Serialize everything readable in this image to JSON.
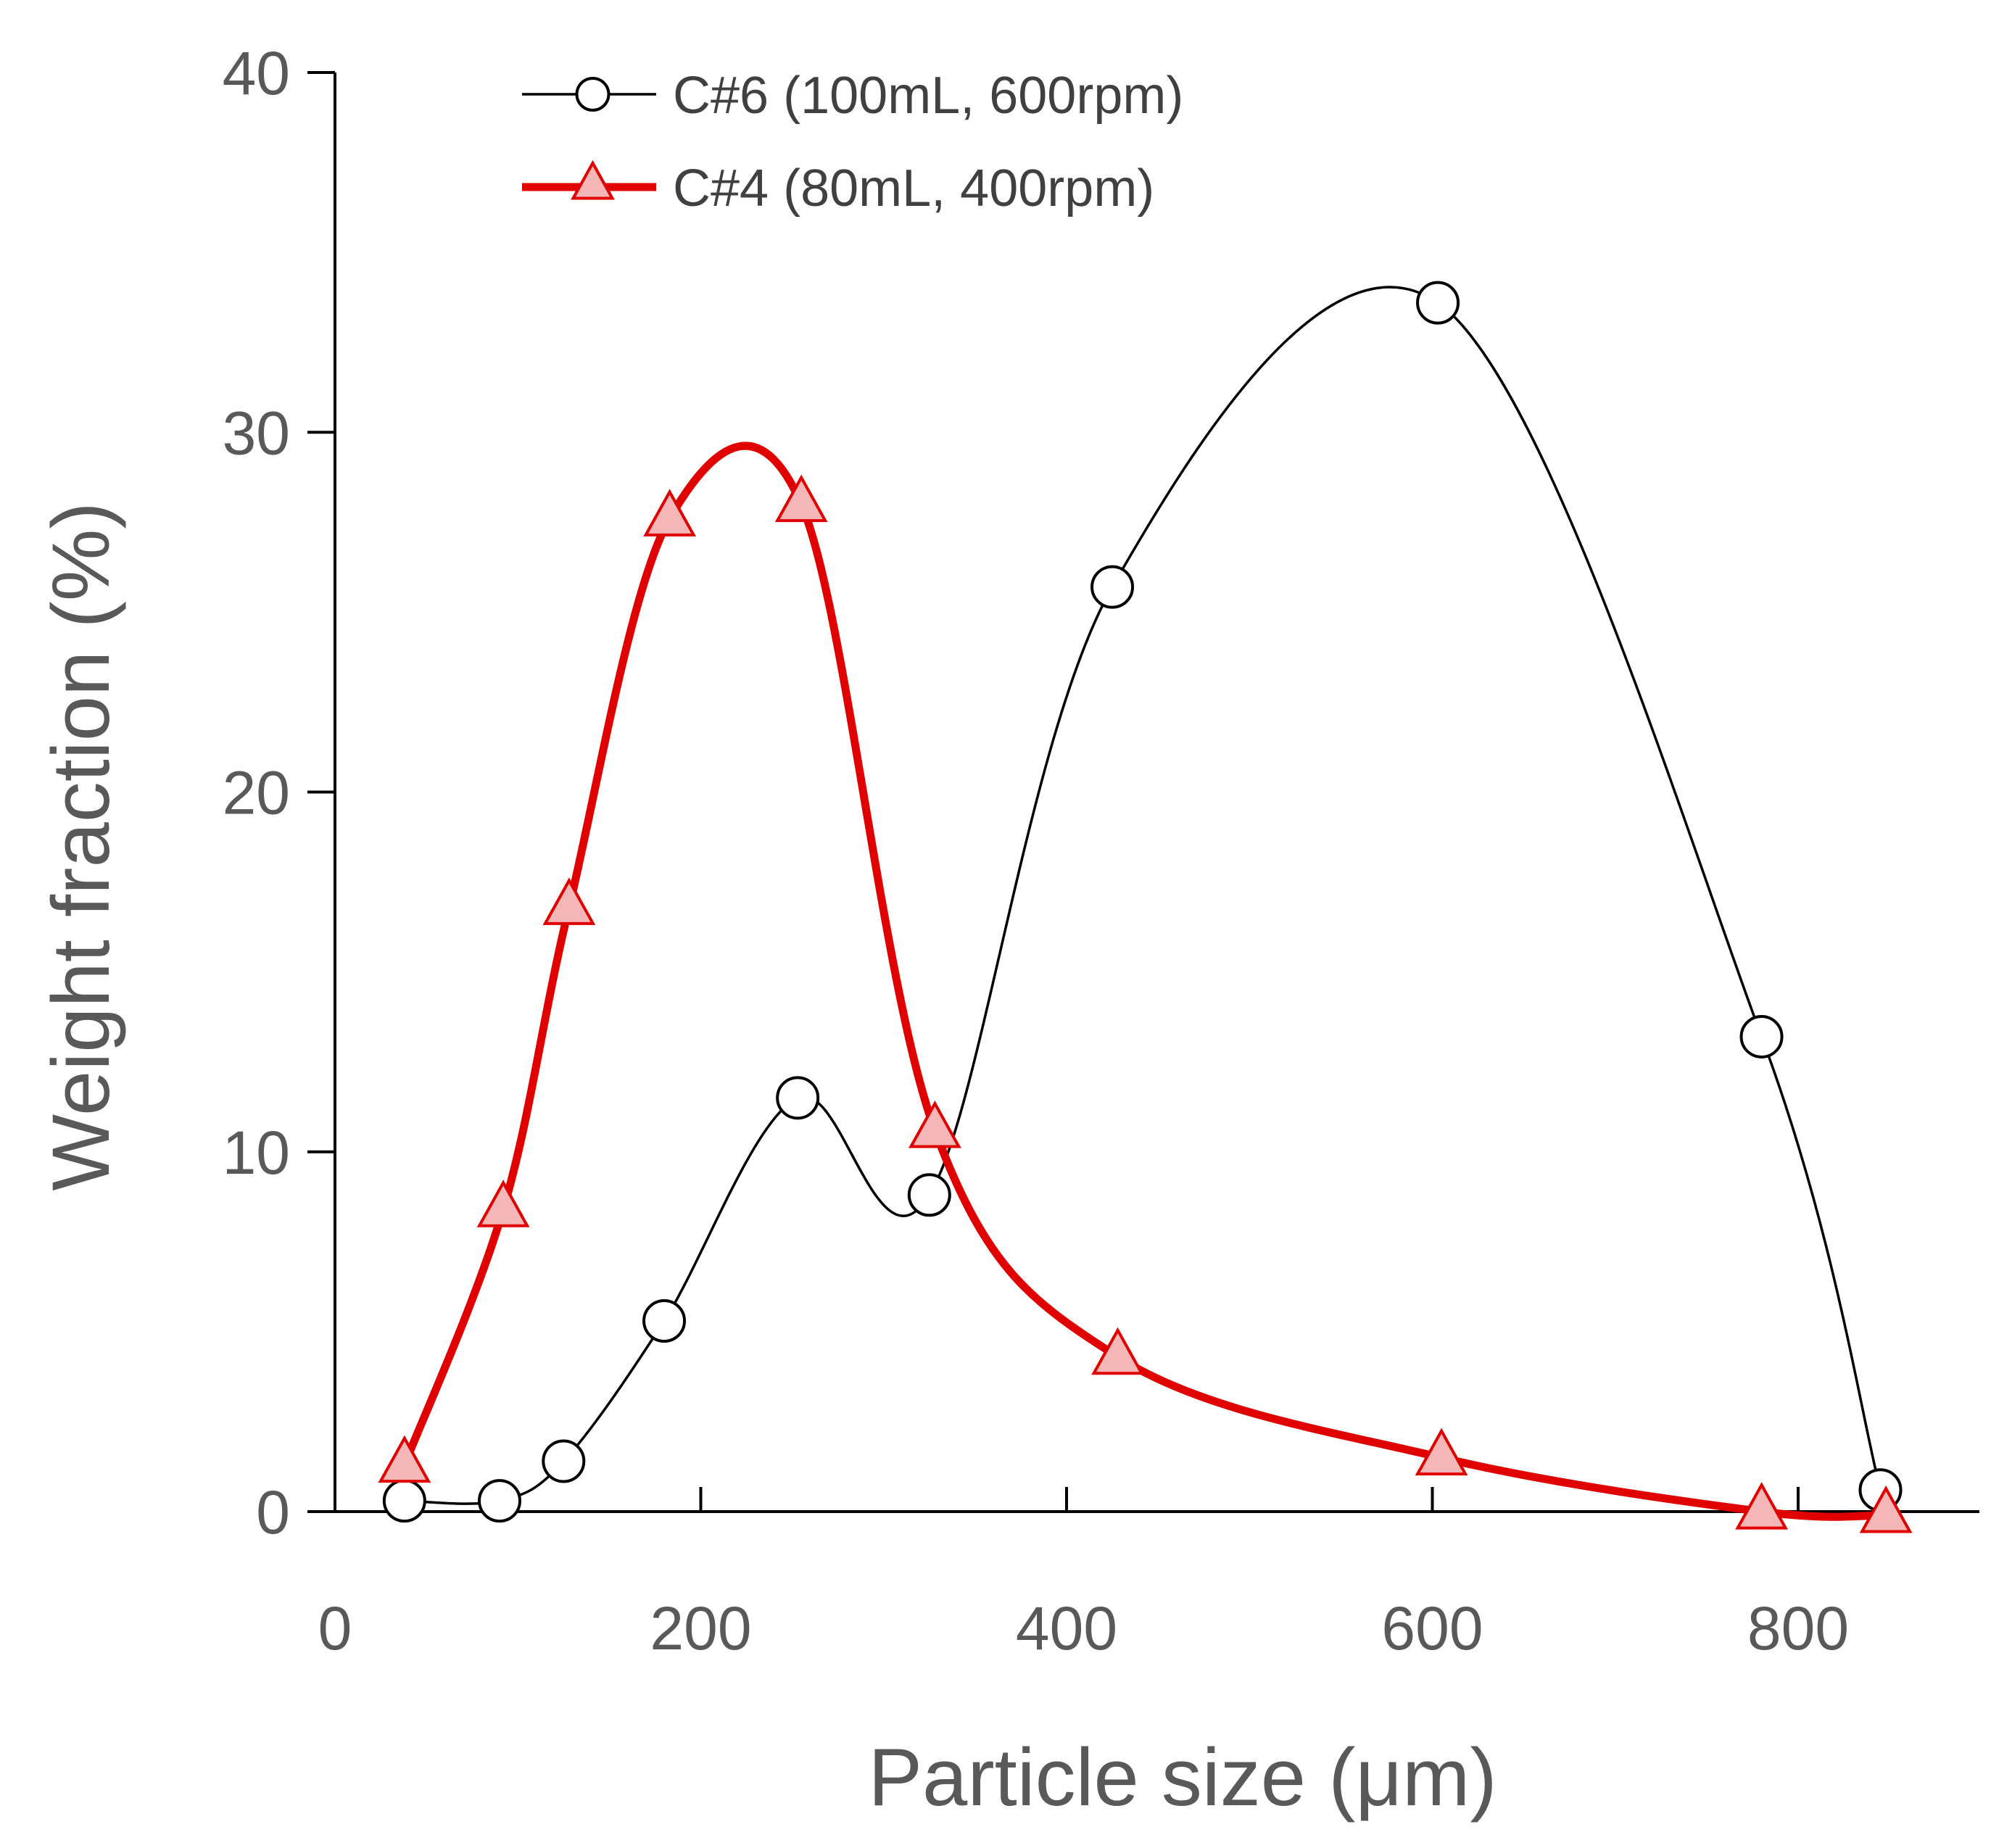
{
  "chart_data": {
    "type": "line",
    "title": "",
    "xlabel": "Particle size (μm)",
    "ylabel": "Weight fraction (%)",
    "xlim": [
      0,
      900
    ],
    "ylim": [
      0,
      40
    ],
    "xticks": [
      0,
      200,
      400,
      600,
      800
    ],
    "yticks": [
      0,
      10,
      20,
      30,
      40
    ],
    "x_tick_labels": [
      "0",
      "200",
      "400",
      "600",
      "800"
    ],
    "y_tick_labels": [
      "0",
      "10",
      "20",
      "30",
      "40"
    ],
    "grid": false,
    "legend_position": "top-left",
    "series": [
      {
        "name": "C#6 (100mL, 600rpm)",
        "color": "#000000",
        "marker": "circle",
        "line_style": "thin",
        "x": [
          38,
          90,
          125,
          180,
          253,
          325,
          425,
          603,
          780,
          845
        ],
        "values": [
          0.3,
          0.3,
          1.4,
          5.3,
          11.5,
          8.8,
          25.7,
          33.6,
          13.2,
          0.6
        ]
      },
      {
        "name": "C#4 (80mL, 400rpm)",
        "color": "#e00000",
        "marker": "triangle",
        "line_style": "thick",
        "x": [
          38,
          92,
          128,
          183,
          255,
          328,
          428,
          605,
          780,
          848
        ],
        "values": [
          1.3,
          8.4,
          16.8,
          27.6,
          28.0,
          10.6,
          4.3,
          1.5,
          0.0,
          -0.1
        ]
      }
    ]
  }
}
